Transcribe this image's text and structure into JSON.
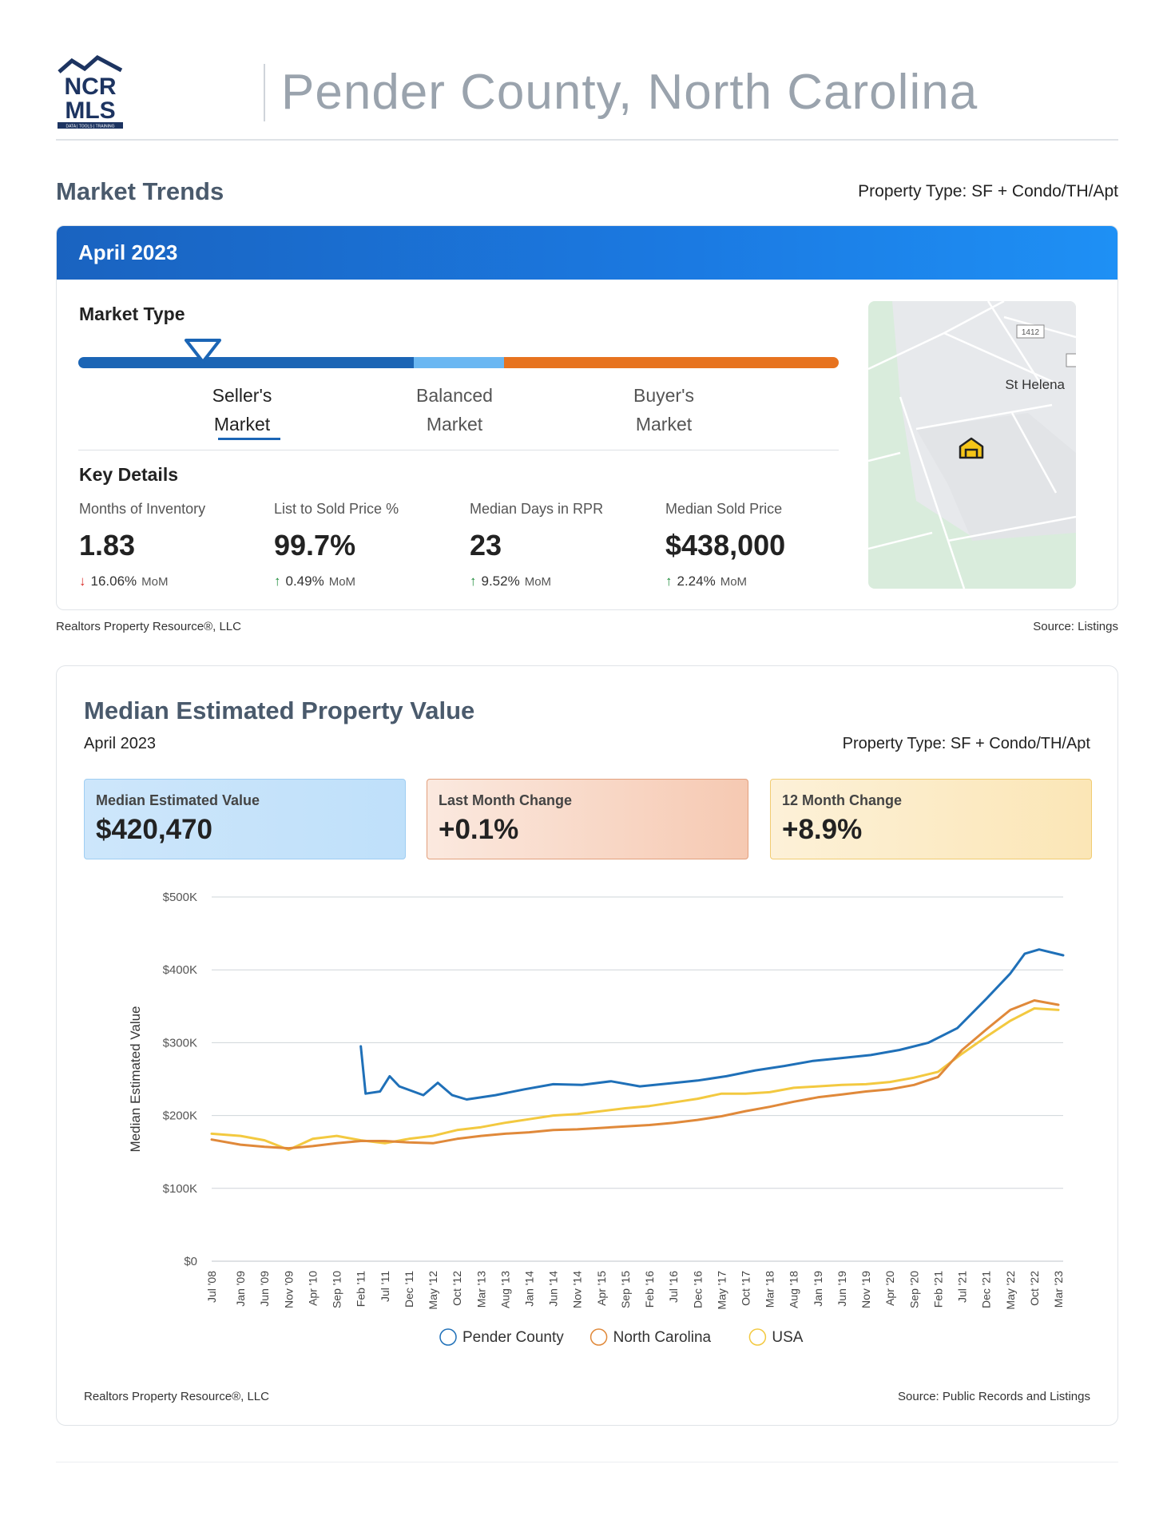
{
  "logo": {
    "line1": "NCR",
    "line2": "MLS",
    "tagline": "DATA | TOOLS | TRAINING"
  },
  "header": {
    "title": "Pender County, North Carolina"
  },
  "market_trends": {
    "title": "Market Trends",
    "property_type": "Property Type: SF + Condo/TH/Apt",
    "month": "April 2023",
    "market_type_label": "Market Type",
    "market_type_selected": "Seller's Market",
    "scale": {
      "sellers_line1": "Seller's",
      "sellers_line2": "Market",
      "balanced_line1": "Balanced",
      "balanced_line2": "Market",
      "buyers_line1": "Buyer's",
      "buyers_line2": "Market"
    },
    "key_details_label": "Key Details",
    "key_details": [
      {
        "label": "Months of Inventory",
        "value": "1.83",
        "change": "16.06%",
        "change_unit": "MoM",
        "direction": "down"
      },
      {
        "label": "List to Sold Price %",
        "value": "99.7%",
        "change": "0.49%",
        "change_unit": "MoM",
        "direction": "up"
      },
      {
        "label": "Median Days in RPR",
        "value": "23",
        "change": "9.52%",
        "change_unit": "MoM",
        "direction": "up"
      },
      {
        "label": "Median Sold Price",
        "value": "$438,000",
        "change": "2.24%",
        "change_unit": "MoM",
        "direction": "up"
      }
    ],
    "map": {
      "place_label": "St Helena",
      "road_label": "1412"
    },
    "footer_left": "Realtors Property Resource®, LLC",
    "footer_right": "Source: Listings"
  },
  "median_value": {
    "title": "Median Estimated Property Value",
    "date": "April 2023",
    "property_type": "Property Type: SF + Condo/TH/Apt",
    "boxes": {
      "mev_label": "Median Estimated Value",
      "mev_value": "$420,470",
      "lmc_label": "Last Month Change",
      "lmc_value": "+0.1%",
      "m12_label": "12 Month Change",
      "m12_value": "+8.9%"
    },
    "footer_left": "Realtors Property Resource®, LLC",
    "footer_right": "Source: Public Records and Listings"
  },
  "colors": {
    "pender": "#1f70b8",
    "nc": "#e0893a",
    "usa": "#f3c940",
    "banner": "#1b7ae2"
  },
  "chart_data": {
    "type": "line",
    "ylabel": "Median Estimated Value",
    "ylim": [
      0,
      500000
    ],
    "y_ticks": [
      0,
      100000,
      200000,
      300000,
      400000,
      500000
    ],
    "y_tick_labels": [
      "$0",
      "$100K",
      "$200K",
      "$300K",
      "$400K",
      "$500K"
    ],
    "x_tick_labels": [
      "Jul '08",
      "Jan '09",
      "Jun '09",
      "Nov '09",
      "Apr '10",
      "Sep '10",
      "Feb '11",
      "Jul '11",
      "Dec '11",
      "May '12",
      "Oct '12",
      "Mar '13",
      "Aug '13",
      "Jan '14",
      "Jun '14",
      "Nov '14",
      "Apr '15",
      "Sep '15",
      "Feb '16",
      "Jul '16",
      "Dec '16",
      "May '17",
      "Oct '17",
      "Mar '18",
      "Aug '18",
      "Jan '19",
      "Jun '19",
      "Nov '19",
      "Apr '20",
      "Sep '20",
      "Feb '21",
      "Jul '21",
      "Dec '21",
      "May '22",
      "Oct '22",
      "Mar '23"
    ],
    "x_range": [
      "Jul '08",
      "Apr '23"
    ],
    "grid": true,
    "legend_position": "bottom",
    "series": [
      {
        "name": "Pender County",
        "color": "#1f70b8",
        "points": [
          [
            "Feb '11",
            295000
          ],
          [
            "Mar '11",
            230000
          ],
          [
            "Jun '11",
            233000
          ],
          [
            "Aug '11",
            254000
          ],
          [
            "Oct '11",
            240000
          ],
          [
            "Mar '12",
            228000
          ],
          [
            "Jun '12",
            245000
          ],
          [
            "Sep '12",
            228000
          ],
          [
            "Dec '12",
            222000
          ],
          [
            "Jun '13",
            228000
          ],
          [
            "Dec '13",
            236000
          ],
          [
            "Jun '14",
            243000
          ],
          [
            "Dec '14",
            242000
          ],
          [
            "Jun '15",
            247000
          ],
          [
            "Dec '15",
            240000
          ],
          [
            "Jun '16",
            244000
          ],
          [
            "Dec '16",
            248000
          ],
          [
            "Jun '17",
            254000
          ],
          [
            "Dec '17",
            262000
          ],
          [
            "Jun '18",
            268000
          ],
          [
            "Dec '18",
            275000
          ],
          [
            "Jun '19",
            279000
          ],
          [
            "Dec '19",
            283000
          ],
          [
            "Jun '20",
            290000
          ],
          [
            "Dec '20",
            300000
          ],
          [
            "Jun '21",
            320000
          ],
          [
            "Dec '21",
            360000
          ],
          [
            "May '22",
            395000
          ],
          [
            "Aug '22",
            422000
          ],
          [
            "Nov '22",
            428000
          ],
          [
            "Apr '23",
            420000
          ]
        ]
      },
      {
        "name": "North Carolina",
        "color": "#e0893a",
        "points": [
          [
            "Jul '08",
            167000
          ],
          [
            "Jan '09",
            160000
          ],
          [
            "Jun '09",
            157000
          ],
          [
            "Nov '09",
            155000
          ],
          [
            "Apr '10",
            158000
          ],
          [
            "Sep '10",
            162000
          ],
          [
            "Feb '11",
            165000
          ],
          [
            "Jul '11",
            165000
          ],
          [
            "Dec '11",
            163000
          ],
          [
            "May '12",
            162000
          ],
          [
            "Oct '12",
            168000
          ],
          [
            "Mar '13",
            172000
          ],
          [
            "Aug '13",
            175000
          ],
          [
            "Jan '14",
            177000
          ],
          [
            "Jun '14",
            180000
          ],
          [
            "Nov '14",
            181000
          ],
          [
            "Apr '15",
            183000
          ],
          [
            "Sep '15",
            185000
          ],
          [
            "Feb '16",
            187000
          ],
          [
            "Jul '16",
            190000
          ],
          [
            "Dec '16",
            194000
          ],
          [
            "May '17",
            199000
          ],
          [
            "Oct '17",
            206000
          ],
          [
            "Mar '18",
            212000
          ],
          [
            "Aug '18",
            219000
          ],
          [
            "Jan '19",
            225000
          ],
          [
            "Jun '19",
            229000
          ],
          [
            "Nov '19",
            233000
          ],
          [
            "Apr '20",
            236000
          ],
          [
            "Sep '20",
            242000
          ],
          [
            "Feb '21",
            253000
          ],
          [
            "Jul '21",
            290000
          ],
          [
            "Dec '21",
            318000
          ],
          [
            "May '22",
            345000
          ],
          [
            "Oct '22",
            358000
          ],
          [
            "Mar '23",
            352000
          ]
        ]
      },
      {
        "name": "USA",
        "color": "#f3c940",
        "points": [
          [
            "Jul '08",
            175000
          ],
          [
            "Jan '09",
            172000
          ],
          [
            "Jun '09",
            166000
          ],
          [
            "Nov '09",
            153000
          ],
          [
            "Apr '10",
            168000
          ],
          [
            "Sep '10",
            172000
          ],
          [
            "Feb '11",
            166000
          ],
          [
            "Jul '11",
            162000
          ],
          [
            "Dec '11",
            168000
          ],
          [
            "May '12",
            172000
          ],
          [
            "Oct '12",
            180000
          ],
          [
            "Mar '13",
            184000
          ],
          [
            "Aug '13",
            190000
          ],
          [
            "Jan '14",
            195000
          ],
          [
            "Jun '14",
            200000
          ],
          [
            "Nov '14",
            202000
          ],
          [
            "Apr '15",
            206000
          ],
          [
            "Sep '15",
            210000
          ],
          [
            "Feb '16",
            213000
          ],
          [
            "Jul '16",
            218000
          ],
          [
            "Dec '16",
            223000
          ],
          [
            "May '17",
            230000
          ],
          [
            "Oct '17",
            230000
          ],
          [
            "Mar '18",
            232000
          ],
          [
            "Aug '18",
            238000
          ],
          [
            "Jan '19",
            240000
          ],
          [
            "Jun '19",
            242000
          ],
          [
            "Nov '19",
            243000
          ],
          [
            "Apr '20",
            246000
          ],
          [
            "Sep '20",
            252000
          ],
          [
            "Feb '21",
            260000
          ],
          [
            "Jul '21",
            285000
          ],
          [
            "Dec '21",
            308000
          ],
          [
            "May '22",
            330000
          ],
          [
            "Oct '22",
            347000
          ],
          [
            "Mar '23",
            345000
          ]
        ]
      }
    ]
  }
}
